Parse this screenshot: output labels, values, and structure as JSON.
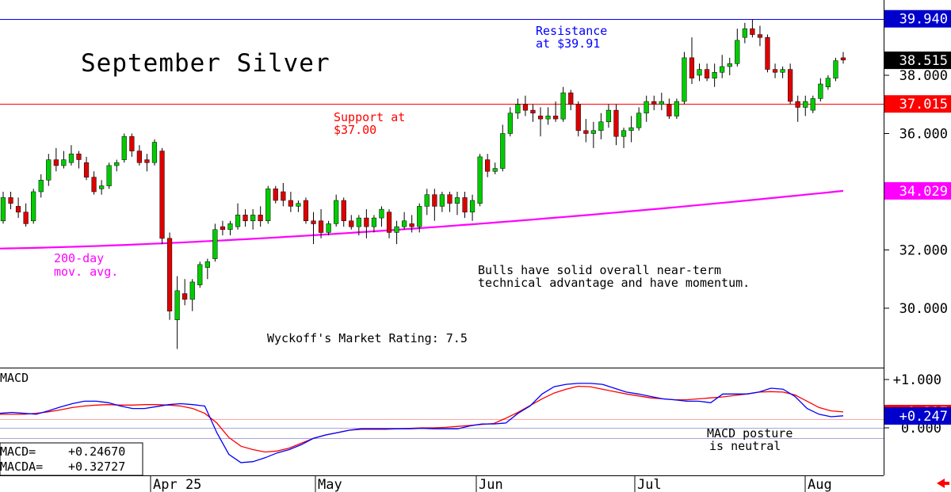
{
  "chart_data": {
    "type": "candlestick",
    "title": "September Silver",
    "price_axis": {
      "ticks": [
        30.0,
        32.0,
        34.0,
        36.0,
        38.0
      ],
      "tick_labels": [
        "30.000",
        "32.000",
        "34.000",
        "36.000",
        "38.000"
      ],
      "range": [
        28.5,
        40.2
      ]
    },
    "date_axis": {
      "labels": [
        "Apr 25",
        "May",
        "Jun",
        "Jul",
        "Aug"
      ]
    },
    "price_tags": [
      {
        "label": "39.940",
        "value": 39.94,
        "color": "#0000cc",
        "text_color": "#ffffff"
      },
      {
        "label": "38.515",
        "value": 38.515,
        "color": "#000000",
        "text_color": "#ffffff"
      },
      {
        "label": "37.015",
        "value": 37.015,
        "color": "#ff0000",
        "text_color": "#ffffff"
      },
      {
        "label": "34.029",
        "value": 34.029,
        "color": "#ff00ff",
        "text_color": "#ffffff"
      }
    ],
    "horizontal_lines": [
      {
        "value": 39.94,
        "color": "#0000ff"
      },
      {
        "value": 37.015,
        "color": "#ff0000"
      }
    ],
    "annotations": {
      "resistance": [
        "Resistance",
        "at $39.91"
      ],
      "support": [
        "Support at",
        "$37.00"
      ],
      "ma_label": [
        "200-day",
        "mov. avg."
      ],
      "comment": [
        "Bulls have solid overall near-term",
        "technical advantage and have momentum."
      ],
      "rating": "Wyckoff's Market Rating: 7.5"
    },
    "candles": [
      {
        "o": 33.0,
        "h": 34.0,
        "l": 32.9,
        "c": 33.8
      },
      {
        "o": 33.8,
        "h": 34.0,
        "l": 33.4,
        "c": 33.6
      },
      {
        "o": 33.5,
        "h": 33.8,
        "l": 33.1,
        "c": 33.3
      },
      {
        "o": 33.3,
        "h": 33.6,
        "l": 32.8,
        "c": 32.9
      },
      {
        "o": 33.0,
        "h": 34.1,
        "l": 32.9,
        "c": 34.0
      },
      {
        "o": 34.0,
        "h": 34.6,
        "l": 33.8,
        "c": 34.4
      },
      {
        "o": 34.4,
        "h": 35.3,
        "l": 34.2,
        "c": 35.1
      },
      {
        "o": 35.1,
        "h": 35.5,
        "l": 34.7,
        "c": 34.9
      },
      {
        "o": 34.9,
        "h": 35.4,
        "l": 34.8,
        "c": 35.1
      },
      {
        "o": 35.0,
        "h": 35.6,
        "l": 34.9,
        "c": 35.3
      },
      {
        "o": 35.3,
        "h": 35.4,
        "l": 34.8,
        "c": 35.1
      },
      {
        "o": 35.0,
        "h": 35.2,
        "l": 34.4,
        "c": 34.5
      },
      {
        "o": 34.5,
        "h": 34.7,
        "l": 33.9,
        "c": 34.0
      },
      {
        "o": 34.1,
        "h": 34.4,
        "l": 33.9,
        "c": 34.2
      },
      {
        "o": 34.2,
        "h": 35.0,
        "l": 34.1,
        "c": 34.9
      },
      {
        "o": 34.9,
        "h": 35.1,
        "l": 34.7,
        "c": 35.0
      },
      {
        "o": 35.1,
        "h": 36.0,
        "l": 35.0,
        "c": 35.9
      },
      {
        "o": 35.9,
        "h": 36.0,
        "l": 35.2,
        "c": 35.4
      },
      {
        "o": 35.4,
        "h": 35.6,
        "l": 34.9,
        "c": 35.0
      },
      {
        "o": 35.1,
        "h": 35.3,
        "l": 34.7,
        "c": 35.0
      },
      {
        "o": 35.0,
        "h": 35.8,
        "l": 34.9,
        "c": 35.7
      },
      {
        "o": 35.4,
        "h": 35.5,
        "l": 32.2,
        "c": 32.4
      },
      {
        "o": 32.4,
        "h": 32.6,
        "l": 29.6,
        "c": 29.9
      },
      {
        "o": 29.6,
        "h": 31.1,
        "l": 28.6,
        "c": 30.6
      },
      {
        "o": 30.5,
        "h": 31.0,
        "l": 30.1,
        "c": 30.3
      },
      {
        "o": 30.3,
        "h": 31.0,
        "l": 29.9,
        "c": 30.9
      },
      {
        "o": 30.8,
        "h": 31.6,
        "l": 30.7,
        "c": 31.5
      },
      {
        "o": 31.4,
        "h": 31.7,
        "l": 31.0,
        "c": 31.6
      },
      {
        "o": 31.7,
        "h": 32.9,
        "l": 31.6,
        "c": 32.7
      },
      {
        "o": 32.8,
        "h": 33.0,
        "l": 32.5,
        "c": 32.7
      },
      {
        "o": 32.7,
        "h": 33.0,
        "l": 32.5,
        "c": 32.9
      },
      {
        "o": 32.8,
        "h": 33.6,
        "l": 32.7,
        "c": 33.2
      },
      {
        "o": 33.2,
        "h": 33.4,
        "l": 32.8,
        "c": 33.0
      },
      {
        "o": 33.0,
        "h": 33.4,
        "l": 32.7,
        "c": 33.2
      },
      {
        "o": 33.2,
        "h": 33.5,
        "l": 32.8,
        "c": 33.0
      },
      {
        "o": 33.0,
        "h": 34.2,
        "l": 32.9,
        "c": 34.1
      },
      {
        "o": 34.1,
        "h": 34.2,
        "l": 33.6,
        "c": 33.7
      },
      {
        "o": 34.0,
        "h": 34.3,
        "l": 33.5,
        "c": 33.7
      },
      {
        "o": 33.7,
        "h": 34.0,
        "l": 33.3,
        "c": 33.5
      },
      {
        "o": 33.5,
        "h": 33.7,
        "l": 33.3,
        "c": 33.6
      },
      {
        "o": 33.7,
        "h": 33.8,
        "l": 32.9,
        "c": 33.0
      },
      {
        "o": 33.0,
        "h": 33.3,
        "l": 32.2,
        "c": 32.9
      },
      {
        "o": 33.0,
        "h": 33.4,
        "l": 32.4,
        "c": 32.6
      },
      {
        "o": 32.6,
        "h": 33.0,
        "l": 32.5,
        "c": 32.9
      },
      {
        "o": 32.9,
        "h": 33.9,
        "l": 32.8,
        "c": 33.7
      },
      {
        "o": 33.7,
        "h": 33.8,
        "l": 32.8,
        "c": 33.0
      },
      {
        "o": 33.0,
        "h": 33.2,
        "l": 32.7,
        "c": 32.8
      },
      {
        "o": 32.8,
        "h": 33.2,
        "l": 32.5,
        "c": 33.1
      },
      {
        "o": 33.1,
        "h": 33.4,
        "l": 32.4,
        "c": 32.8
      },
      {
        "o": 32.8,
        "h": 33.2,
        "l": 32.6,
        "c": 33.1
      },
      {
        "o": 33.1,
        "h": 33.5,
        "l": 32.8,
        "c": 33.4
      },
      {
        "o": 33.3,
        "h": 33.4,
        "l": 32.4,
        "c": 32.6
      },
      {
        "o": 32.6,
        "h": 33.0,
        "l": 32.2,
        "c": 32.8
      },
      {
        "o": 32.8,
        "h": 33.3,
        "l": 32.7,
        "c": 33.0
      },
      {
        "o": 32.9,
        "h": 33.2,
        "l": 32.6,
        "c": 32.8
      },
      {
        "o": 32.8,
        "h": 33.6,
        "l": 32.6,
        "c": 33.5
      },
      {
        "o": 33.5,
        "h": 34.1,
        "l": 33.2,
        "c": 33.9
      },
      {
        "o": 33.9,
        "h": 34.1,
        "l": 33.0,
        "c": 33.5
      },
      {
        "o": 33.5,
        "h": 34.0,
        "l": 33.3,
        "c": 33.9
      },
      {
        "o": 33.9,
        "h": 34.0,
        "l": 33.3,
        "c": 33.6
      },
      {
        "o": 33.6,
        "h": 34.0,
        "l": 33.2,
        "c": 33.8
      },
      {
        "o": 33.8,
        "h": 34.0,
        "l": 33.1,
        "c": 33.3
      },
      {
        "o": 33.3,
        "h": 33.9,
        "l": 33.0,
        "c": 33.7
      },
      {
        "o": 33.6,
        "h": 35.3,
        "l": 33.5,
        "c": 35.2
      },
      {
        "o": 35.1,
        "h": 35.3,
        "l": 34.5,
        "c": 34.7
      },
      {
        "o": 34.7,
        "h": 35.0,
        "l": 34.6,
        "c": 34.8
      },
      {
        "o": 34.8,
        "h": 36.3,
        "l": 34.7,
        "c": 36.0
      },
      {
        "o": 36.0,
        "h": 36.9,
        "l": 35.9,
        "c": 36.7
      },
      {
        "o": 36.7,
        "h": 37.2,
        "l": 36.5,
        "c": 37.0
      },
      {
        "o": 37.0,
        "h": 37.3,
        "l": 36.6,
        "c": 36.8
      },
      {
        "o": 36.8,
        "h": 37.0,
        "l": 36.4,
        "c": 36.7
      },
      {
        "o": 36.6,
        "h": 36.9,
        "l": 35.9,
        "c": 36.5
      },
      {
        "o": 36.5,
        "h": 36.9,
        "l": 36.3,
        "c": 36.6
      },
      {
        "o": 36.6,
        "h": 37.1,
        "l": 36.4,
        "c": 36.5
      },
      {
        "o": 36.5,
        "h": 37.6,
        "l": 36.4,
        "c": 37.4
      },
      {
        "o": 37.4,
        "h": 37.5,
        "l": 36.8,
        "c": 37.0
      },
      {
        "o": 37.0,
        "h": 37.1,
        "l": 35.9,
        "c": 36.1
      },
      {
        "o": 36.1,
        "h": 36.5,
        "l": 35.7,
        "c": 36.0
      },
      {
        "o": 36.0,
        "h": 36.4,
        "l": 35.5,
        "c": 36.1
      },
      {
        "o": 36.1,
        "h": 36.7,
        "l": 35.8,
        "c": 36.4
      },
      {
        "o": 36.4,
        "h": 37.0,
        "l": 36.2,
        "c": 36.8
      },
      {
        "o": 36.8,
        "h": 37.0,
        "l": 35.6,
        "c": 35.9
      },
      {
        "o": 35.9,
        "h": 36.2,
        "l": 35.5,
        "c": 36.1
      },
      {
        "o": 36.1,
        "h": 36.6,
        "l": 35.7,
        "c": 36.2
      },
      {
        "o": 36.2,
        "h": 36.9,
        "l": 36.1,
        "c": 36.7
      },
      {
        "o": 36.7,
        "h": 37.3,
        "l": 36.4,
        "c": 37.1
      },
      {
        "o": 37.1,
        "h": 37.3,
        "l": 36.8,
        "c": 37.0
      },
      {
        "o": 37.0,
        "h": 37.4,
        "l": 36.8,
        "c": 37.1
      },
      {
        "o": 37.0,
        "h": 37.2,
        "l": 36.5,
        "c": 36.6
      },
      {
        "o": 36.6,
        "h": 37.2,
        "l": 36.5,
        "c": 37.1
      },
      {
        "o": 37.1,
        "h": 38.8,
        "l": 37.0,
        "c": 38.6
      },
      {
        "o": 38.6,
        "h": 39.3,
        "l": 37.7,
        "c": 37.9
      },
      {
        "o": 38.0,
        "h": 38.4,
        "l": 37.8,
        "c": 38.2
      },
      {
        "o": 38.2,
        "h": 38.4,
        "l": 37.8,
        "c": 37.9
      },
      {
        "o": 37.9,
        "h": 38.4,
        "l": 37.6,
        "c": 38.1
      },
      {
        "o": 38.1,
        "h": 38.7,
        "l": 37.9,
        "c": 38.3
      },
      {
        "o": 38.3,
        "h": 38.6,
        "l": 38.0,
        "c": 38.4
      },
      {
        "o": 38.4,
        "h": 39.6,
        "l": 38.3,
        "c": 39.2
      },
      {
        "o": 39.3,
        "h": 39.8,
        "l": 39.1,
        "c": 39.6
      },
      {
        "o": 39.6,
        "h": 39.91,
        "l": 39.3,
        "c": 39.4
      },
      {
        "o": 39.4,
        "h": 39.7,
        "l": 39.0,
        "c": 39.3
      },
      {
        "o": 39.3,
        "h": 39.4,
        "l": 38.1,
        "c": 38.2
      },
      {
        "o": 38.2,
        "h": 38.4,
        "l": 37.9,
        "c": 38.1
      },
      {
        "o": 38.1,
        "h": 38.3,
        "l": 37.9,
        "c": 38.2
      },
      {
        "o": 38.2,
        "h": 38.4,
        "l": 37.0,
        "c": 37.1
      },
      {
        "o": 37.1,
        "h": 37.3,
        "l": 36.4,
        "c": 36.9
      },
      {
        "o": 36.9,
        "h": 37.3,
        "l": 36.6,
        "c": 37.1
      },
      {
        "o": 36.8,
        "h": 37.3,
        "l": 36.7,
        "c": 37.2
      },
      {
        "o": 37.2,
        "h": 37.9,
        "l": 37.1,
        "c": 37.7
      },
      {
        "o": 37.6,
        "h": 38.0,
        "l": 37.5,
        "c": 37.9
      },
      {
        "o": 37.9,
        "h": 38.6,
        "l": 37.8,
        "c": 38.5
      },
      {
        "o": 38.6,
        "h": 38.8,
        "l": 38.4,
        "c": 38.52
      }
    ],
    "moving_average_200": {
      "name": "200-day mov. avg.",
      "start": 32.05,
      "end": 34.03,
      "color": "#ff00ff"
    },
    "macd": {
      "title": "MACD",
      "ticks": [
        0.0,
        1.0
      ],
      "tick_labels": [
        "0.000",
        "+1.000"
      ],
      "range": [
        -0.9,
        1.2
      ],
      "macd_value_tag": "+0.247",
      "macda_value_tag": "+0.327",
      "readout": [
        {
          "label": "MACD=",
          "value": "+0.24670"
        },
        {
          "label": "MACDA=",
          "value": "+0.32727"
        }
      ],
      "comment": [
        "MACD posture",
        "is neutral"
      ],
      "macd_line": [
        0.3,
        0.32,
        0.3,
        0.28,
        0.35,
        0.43,
        0.5,
        0.55,
        0.55,
        0.52,
        0.45,
        0.4,
        0.4,
        0.44,
        0.48,
        0.5,
        0.48,
        0.45,
        -0.1,
        -0.55,
        -0.72,
        -0.7,
        -0.62,
        -0.52,
        -0.45,
        -0.35,
        -0.22,
        -0.15,
        -0.1,
        -0.05,
        -0.02,
        -0.02,
        -0.02,
        -0.02,
        -0.02,
        -0.01,
        -0.02,
        -0.02,
        -0.02,
        0.04,
        0.08,
        0.08,
        0.1,
        0.3,
        0.45,
        0.7,
        0.85,
        0.9,
        0.92,
        0.92,
        0.9,
        0.82,
        0.74,
        0.7,
        0.65,
        0.6,
        0.58,
        0.55,
        0.55,
        0.52,
        0.7,
        0.7,
        0.7,
        0.74,
        0.82,
        0.8,
        0.65,
        0.4,
        0.28,
        0.23,
        0.25
      ],
      "macda_line": [
        0.28,
        0.28,
        0.28,
        0.3,
        0.33,
        0.37,
        0.42,
        0.45,
        0.47,
        0.48,
        0.47,
        0.47,
        0.48,
        0.48,
        0.47,
        0.45,
        0.4,
        0.3,
        0.1,
        -0.2,
        -0.38,
        -0.45,
        -0.5,
        -0.48,
        -0.42,
        -0.32,
        -0.22,
        -0.15,
        -0.1,
        -0.05,
        -0.03,
        -0.03,
        -0.03,
        -0.02,
        -0.01,
        0.0,
        0.0,
        0.01,
        0.03,
        0.05,
        0.07,
        0.09,
        0.2,
        0.32,
        0.46,
        0.6,
        0.72,
        0.8,
        0.86,
        0.85,
        0.8,
        0.75,
        0.7,
        0.66,
        0.62,
        0.6,
        0.58,
        0.58,
        0.6,
        0.62,
        0.64,
        0.67,
        0.7,
        0.74,
        0.75,
        0.74,
        0.68,
        0.55,
        0.42,
        0.35,
        0.33
      ]
    }
  }
}
